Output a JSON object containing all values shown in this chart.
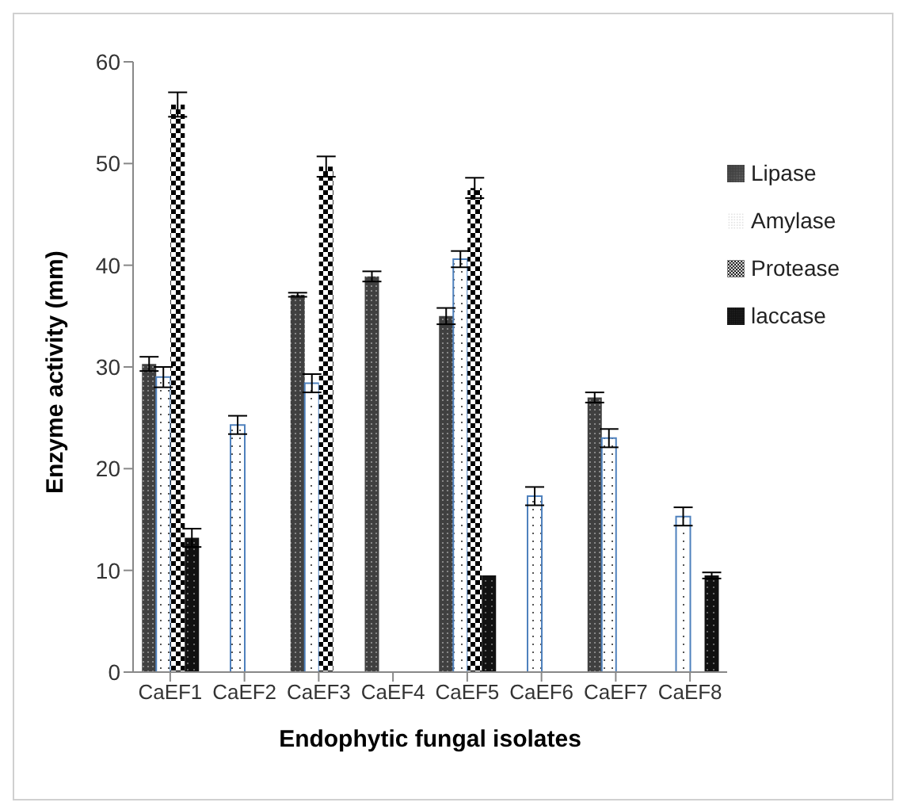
{
  "chart_data": {
    "type": "bar",
    "xlabel": "Endophytic fungal isolates",
    "ylabel": "Enzyme  activity (mm)",
    "categories": [
      "CaEF1",
      "CaEF2",
      "CaEF3",
      "CaEF4",
      "CaEF5",
      "CaEF6",
      "CaEF7",
      "CaEF8"
    ],
    "series": [
      {
        "name": "Lipase",
        "color": "#404040",
        "values": [
          30.3,
          null,
          37.1,
          38.9,
          35,
          null,
          27,
          null
        ],
        "errors": [
          0.7,
          null,
          0.2,
          0.5,
          0.8,
          null,
          0.5,
          null
        ]
      },
      {
        "name": "Amylase",
        "color": "#4f81bd",
        "values": [
          29,
          24.3,
          28.4,
          null,
          40.6,
          17.3,
          23,
          15.3
        ],
        "errors": [
          1,
          0.9,
          0.9,
          null,
          0.8,
          0.9,
          0.9,
          0.9
        ]
      },
      {
        "name": "Protease",
        "color": "#000000",
        "values": [
          55.8,
          null,
          49.7,
          null,
          47.6,
          null,
          null,
          null
        ],
        "errors": [
          1.2,
          null,
          1,
          null,
          1,
          null,
          null,
          null
        ]
      },
      {
        "name": "laccase",
        "color": "#111111",
        "values": [
          13.2,
          null,
          null,
          null,
          9.5,
          null,
          null,
          9.5
        ],
        "errors": [
          0.9,
          null,
          null,
          null,
          null,
          null,
          null,
          0.3
        ]
      }
    ],
    "ylim": [
      0,
      60
    ],
    "yticks": [
      0,
      10,
      20,
      30,
      40,
      50,
      60
    ],
    "grid": false,
    "legend": "right"
  }
}
